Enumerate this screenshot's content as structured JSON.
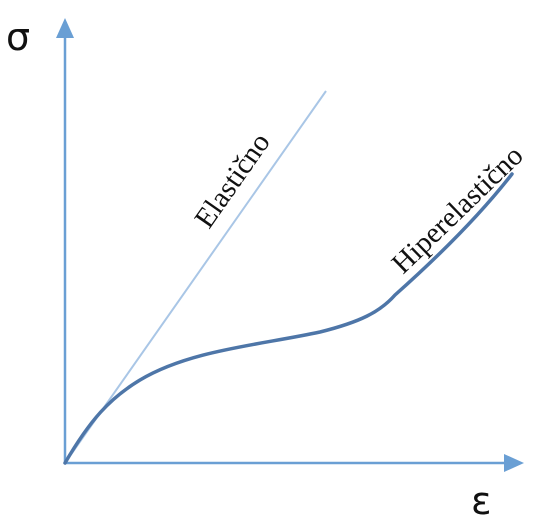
{
  "diagram": {
    "y_axis_symbol": "σ",
    "x_axis_symbol": "ε",
    "elastic_label": "Elastično",
    "hyperelastic_label": "Hiperelastično"
  },
  "colors": {
    "axis": "#6a9fd4",
    "elastic_line": "#a9c6e6",
    "hyperelastic_curve": "#4e76a8",
    "text": "#111111"
  }
}
